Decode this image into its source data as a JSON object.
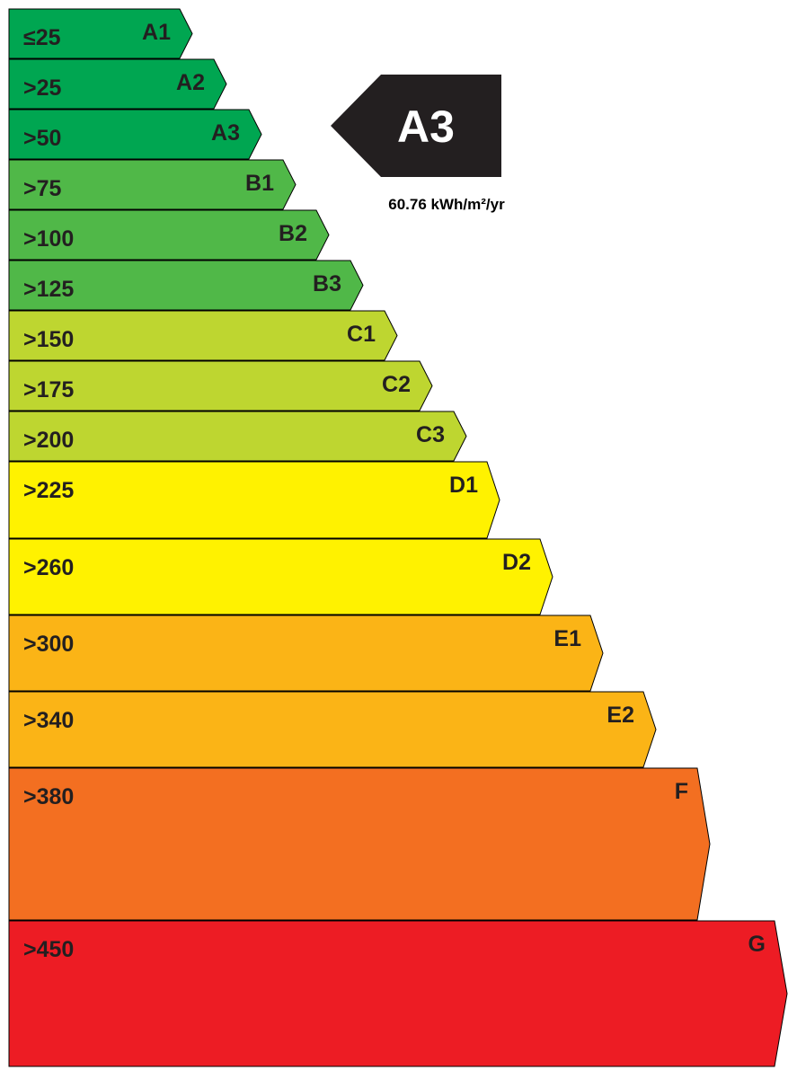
{
  "bands": [
    {
      "threshold": "≤25",
      "rating": "A1",
      "color": "#00a651"
    },
    {
      "threshold": ">25",
      "rating": "A2",
      "color": "#00a651"
    },
    {
      "threshold": ">50",
      "rating": "A3",
      "color": "#00a651"
    },
    {
      "threshold": ">75",
      "rating": "B1",
      "color": "#50b848"
    },
    {
      "threshold": ">100",
      "rating": "B2",
      "color": "#50b848"
    },
    {
      "threshold": ">125",
      "rating": "B3",
      "color": "#50b848"
    },
    {
      "threshold": ">150",
      "rating": "C1",
      "color": "#bed630"
    },
    {
      "threshold": ">175",
      "rating": "C2",
      "color": "#bed630"
    },
    {
      "threshold": ">200",
      "rating": "C3",
      "color": "#bed630"
    },
    {
      "threshold": ">225",
      "rating": "D1",
      "color": "#fff200"
    },
    {
      "threshold": ">260",
      "rating": "D2",
      "color": "#fff200"
    },
    {
      "threshold": ">300",
      "rating": "E1",
      "color": "#fbb416"
    },
    {
      "threshold": ">340",
      "rating": "E2",
      "color": "#fbb416"
    },
    {
      "threshold": ">380",
      "rating": "F",
      "color": "#f36f21"
    },
    {
      "threshold": ">450",
      "rating": "G",
      "color": "#ed1c24"
    }
  ],
  "current": {
    "rating": "A3",
    "value": "60.76 kWh/m²/yr",
    "color": "#231f20"
  }
}
